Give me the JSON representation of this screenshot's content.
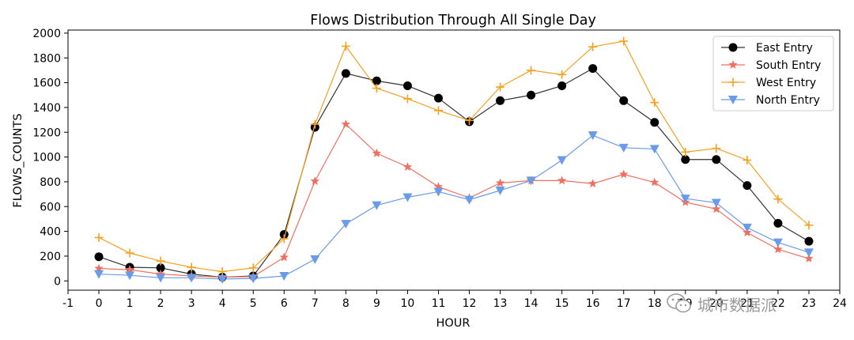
{
  "chart_data": {
    "type": "line",
    "title": "Flows Distribution Through All Single Day",
    "xlabel": "HOUR",
    "ylabel": "FLOWS_COUNTS",
    "xlim": [
      -1,
      24
    ],
    "ylim": [
      -75,
      2025
    ],
    "x_ticks": [
      -1,
      0,
      1,
      2,
      3,
      4,
      5,
      6,
      7,
      8,
      9,
      10,
      11,
      12,
      13,
      14,
      15,
      16,
      17,
      18,
      19,
      20,
      21,
      22,
      23,
      24
    ],
    "y_ticks": [
      0,
      200,
      400,
      600,
      800,
      1000,
      1200,
      1400,
      1600,
      1800,
      2000
    ],
    "x": [
      0,
      1,
      2,
      3,
      4,
      5,
      6,
      7,
      8,
      9,
      10,
      11,
      12,
      13,
      14,
      15,
      16,
      17,
      18,
      19,
      20,
      21,
      22,
      23
    ],
    "grid": false,
    "legend_position": "top-right",
    "series": [
      {
        "name": "East Entry",
        "color": "#000000",
        "line_color": "#333333",
        "marker": "circle",
        "values": [
          195,
          110,
          105,
          55,
          30,
          40,
          375,
          1240,
          1675,
          1615,
          1575,
          1475,
          1285,
          1455,
          1500,
          1575,
          1715,
          1455,
          1280,
          980,
          980,
          770,
          465,
          320
        ]
      },
      {
        "name": "South Entry",
        "color": "#f07060",
        "line_color": "#f07060",
        "marker": "star",
        "values": [
          100,
          90,
          55,
          40,
          30,
          35,
          190,
          805,
          1265,
          1030,
          920,
          760,
          670,
          790,
          810,
          810,
          785,
          860,
          795,
          635,
          580,
          390,
          255,
          180
        ]
      },
      {
        "name": "West Entry",
        "color": "#f5a020",
        "line_color": "#f5a020",
        "marker": "plus",
        "values": [
          350,
          225,
          160,
          110,
          75,
          105,
          340,
          1265,
          1895,
          1555,
          1470,
          1375,
          1295,
          1565,
          1700,
          1665,
          1890,
          1935,
          1440,
          1040,
          1070,
          975,
          660,
          450
        ]
      },
      {
        "name": "North Entry",
        "color": "#6a9be8",
        "line_color": "#6a9be8",
        "marker": "triangle-down",
        "values": [
          55,
          45,
          25,
          25,
          15,
          20,
          40,
          175,
          460,
          610,
          675,
          720,
          655,
          730,
          810,
          975,
          1175,
          1075,
          1065,
          665,
          630,
          430,
          310,
          230
        ]
      }
    ]
  },
  "watermark": {
    "text": "城市数据派",
    "icon": "wechat-logo-icon"
  }
}
